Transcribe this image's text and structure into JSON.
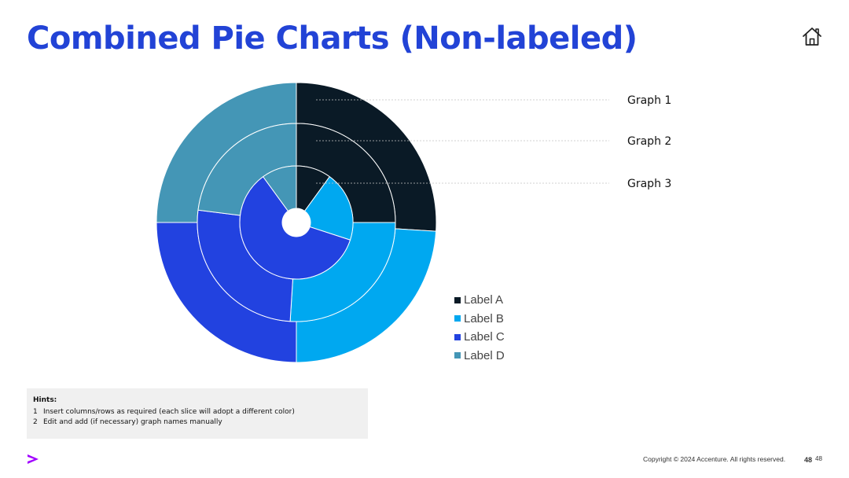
{
  "slide": {
    "title": "Combined Pie Charts (Non-labeled)",
    "copyright": "Copyright © 2024 Accenture. All rights reserved.",
    "page_number": "48",
    "page_number_alt": "48"
  },
  "hints": {
    "title": "Hints:",
    "items": [
      {
        "num": "1",
        "text": "Insert columns/rows as required (each slice will adopt a different color)"
      },
      {
        "num": "2",
        "text": "Edit and add (if necessary) graph names manually"
      }
    ]
  },
  "icons": {
    "home": "home-icon",
    "logo": "accenture-logo"
  },
  "chart_data": {
    "type": "pie",
    "subtype": "nested-donut",
    "categories": [
      "Label A",
      "Label B",
      "Label C",
      "Label D"
    ],
    "colors": [
      "#0a1a26",
      "#00a8f0",
      "#2242e0",
      "#4496b6"
    ],
    "rings": [
      {
        "name": "Graph 1",
        "values": [
          26,
          24,
          25,
          25
        ]
      },
      {
        "name": "Graph 2",
        "values": [
          25,
          26,
          26,
          23
        ]
      },
      {
        "name": "Graph 3",
        "values": [
          10,
          20,
          60,
          10
        ]
      }
    ],
    "legend_position": "bottom-right",
    "data_labels": false
  }
}
